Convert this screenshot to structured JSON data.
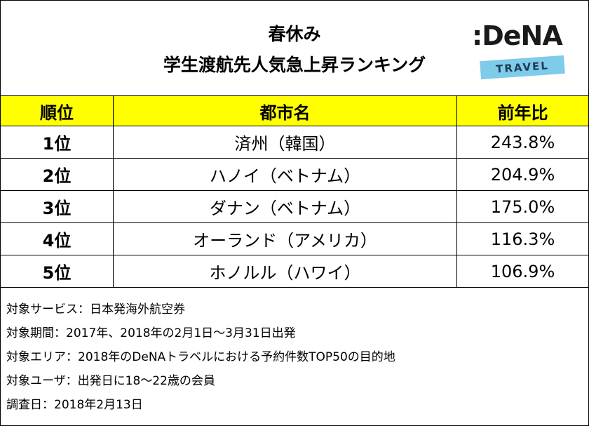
{
  "header": {
    "title_lines": [
      "春休み",
      "学生渡航先人気急上昇ランキング"
    ],
    "logo": {
      "brand": ":DeNA",
      "sub": "TRAVEL"
    }
  },
  "table": {
    "columns": [
      "順位",
      "都市名",
      "前年比"
    ],
    "rows": [
      [
        "1位",
        "済州（韓国）",
        "243.8%"
      ],
      [
        "2位",
        "ハノイ（ベトナム）",
        "204.9%"
      ],
      [
        "3位",
        "ダナン（ベトナム）",
        "175.0%"
      ],
      [
        "4位",
        "オーランド（アメリカ）",
        "116.3%"
      ],
      [
        "5位",
        "ホノルル（ハワイ）",
        "106.9%"
      ]
    ]
  },
  "notes": [
    "対象サービス：日本発海外航空券",
    "対象期間：2017年、2018年の2月1日～3月31日出発",
    "対象エリア：2018年のDeNAトラベルにおける予約件数TOP50の目的地",
    "対象ユーザ：出発日に18～22歳の会員",
    "調査日：2018年2月13日"
  ]
}
